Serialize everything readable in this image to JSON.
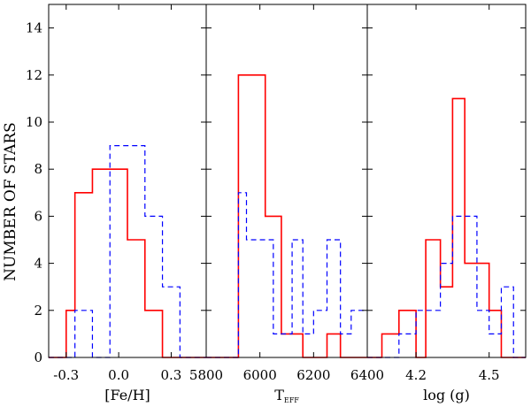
{
  "figure": {
    "ylabel": "NUMBER OF STARS",
    "y_ticks": [
      0,
      2,
      4,
      6,
      8,
      10,
      12,
      14
    ]
  },
  "colors": {
    "red_series": "#ff0000",
    "blue_series": "#0000ff",
    "axis": "#000000"
  },
  "chart_data": [
    {
      "type": "bar",
      "xlabel": "[Fe/H]",
      "xlim": [
        -0.4,
        0.5
      ],
      "ylim": [
        0,
        15
      ],
      "x_ticks": [
        "-0.3",
        "0.0",
        "0.3"
      ],
      "series": [
        {
          "style": "solid",
          "color": "#ff0000",
          "bin_edges": [
            -0.4,
            -0.3,
            -0.25,
            -0.15,
            -0.05,
            0.05,
            0.15,
            0.25,
            0.35,
            0.45,
            0.5
          ],
          "counts": [
            0,
            2,
            7,
            8,
            8,
            5,
            2,
            0,
            0,
            0
          ]
        },
        {
          "style": "dashed",
          "color": "#0000ff",
          "bin_edges": [
            -0.4,
            -0.3,
            -0.25,
            -0.15,
            -0.05,
            0.05,
            0.15,
            0.25,
            0.35,
            0.45,
            0.5
          ],
          "counts": [
            0,
            0,
            2,
            0,
            9,
            9,
            6,
            3,
            0,
            0
          ]
        }
      ]
    },
    {
      "type": "bar",
      "xlabel": "T",
      "xlabel_sub": "EFF",
      "xlim": [
        5800,
        6400
      ],
      "ylim": [
        0,
        15
      ],
      "x_ticks": [
        "5800",
        "6000",
        "6200",
        "6400"
      ],
      "series": [
        {
          "style": "solid",
          "color": "#ff0000",
          "bin_edges": [
            5800,
            5840,
            5920,
            6020,
            6080,
            6120,
            6160,
            6200,
            6250,
            6300,
            6340,
            6400
          ],
          "counts": [
            0,
            0,
            12,
            6,
            1,
            1,
            0,
            0,
            1,
            0,
            0
          ]
        },
        {
          "style": "dashed",
          "color": "#0000ff",
          "bin_edges": [
            5800,
            5840,
            5920,
            5950,
            6050,
            6120,
            6160,
            6200,
            6250,
            6300,
            6340,
            6400
          ],
          "counts": [
            0,
            0,
            7,
            5,
            1,
            5,
            1,
            2,
            5,
            1,
            2
          ]
        }
      ]
    },
    {
      "type": "bar",
      "xlabel": "log (g)",
      "xlim": [
        4.0,
        4.65
      ],
      "ylim": [
        0,
        15
      ],
      "x_ticks": [
        "4.2",
        "4.5"
      ],
      "series": [
        {
          "style": "solid",
          "color": "#ff0000",
          "bin_edges": [
            4.0,
            4.06,
            4.13,
            4.2,
            4.24,
            4.3,
            4.35,
            4.4,
            4.45,
            4.5,
            4.55,
            4.6,
            4.65
          ],
          "counts": [
            0,
            1,
            2,
            0,
            5,
            3,
            11,
            4,
            4,
            2,
            0,
            0
          ]
        },
        {
          "style": "dashed",
          "color": "#0000ff",
          "bin_edges": [
            4.0,
            4.06,
            4.13,
            4.2,
            4.24,
            4.3,
            4.35,
            4.4,
            4.45,
            4.5,
            4.55,
            4.6,
            4.65
          ],
          "counts": [
            0,
            0,
            1,
            2,
            2,
            4,
            6,
            6,
            2,
            1,
            3,
            0
          ]
        }
      ]
    }
  ]
}
